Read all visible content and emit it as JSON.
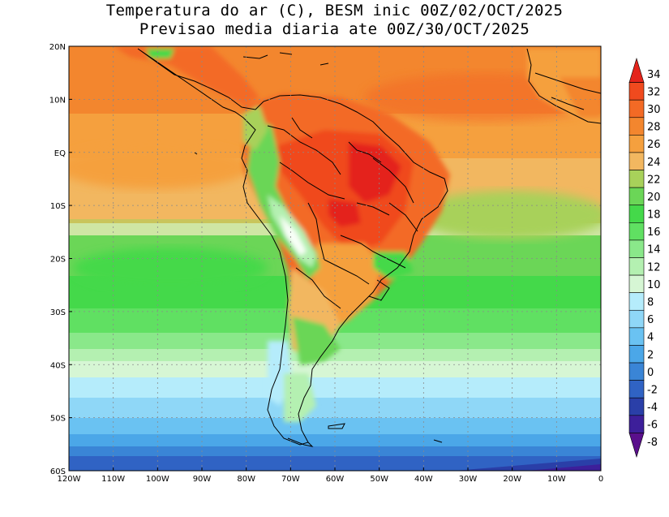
{
  "title_line1": "Temperatura do ar (C), BESM inic 00Z/02/OCT/2025",
  "title_line2": "Previsao media diaria ate 00Z/30/OCT/2025",
  "map": {
    "lon_range": [
      -120,
      0
    ],
    "lat_range": [
      -60,
      20
    ],
    "lon_ticks": [
      "120W",
      "110W",
      "100W",
      "90W",
      "80W",
      "70W",
      "60W",
      "50W",
      "40W",
      "30W",
      "20W",
      "10W",
      "0"
    ],
    "lat_ticks": [
      "20N",
      "10N",
      "EQ",
      "10S",
      "20S",
      "30S",
      "40S",
      "50S",
      "60S"
    ],
    "grid": "dotted"
  },
  "colorbar": {
    "levels": [
      "34",
      "32",
      "30",
      "28",
      "26",
      "24",
      "22",
      "20",
      "18",
      "16",
      "14",
      "12",
      "10",
      "8",
      "6",
      "4",
      "2",
      "0",
      "-2",
      "-4",
      "-6",
      "-8"
    ],
    "colors": [
      "#e4241b",
      "#f04a1e",
      "#f36a25",
      "#f3862e",
      "#f5a03e",
      "#f2b760",
      "#a8d15a",
      "#6bd657",
      "#44d94a",
      "#60e062",
      "#8ae88a",
      "#b4f0b1",
      "#d6f6d4",
      "#b5ecfb",
      "#8fd7f7",
      "#6ac2f2",
      "#4ba7e8",
      "#3a85d6",
      "#3063c4",
      "#2a3fa8",
      "#3d1f9a",
      "#5a0f8c"
    ]
  },
  "legend_colors": {
    "land_outline": "#000000"
  }
}
